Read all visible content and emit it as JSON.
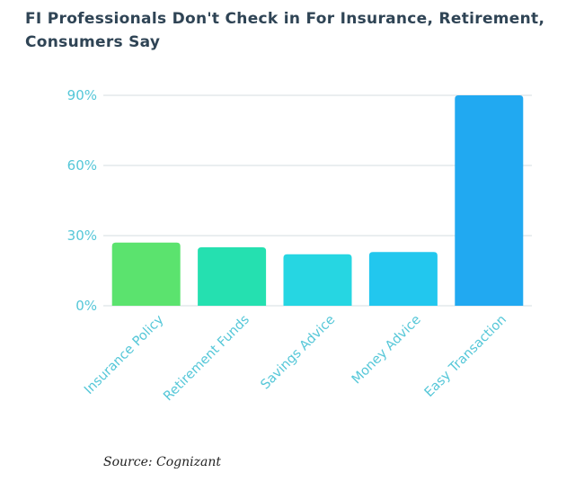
{
  "title": "FI Professionals Don't Check in For Insurance, Retirement, Consumers Say",
  "source": "Source: Cognizant",
  "chart_data": {
    "type": "bar",
    "title": "FI Professionals Don't Check in For Insurance, Retirement, Consumers Say",
    "categories": [
      "Insurance Policy",
      "Retirement Funds",
      "Savings Advice",
      "Money Advice",
      "Easy Transaction"
    ],
    "values": [
      27,
      25,
      22,
      23,
      90
    ],
    "unit": "%",
    "yticks": [
      0,
      30,
      60,
      90
    ],
    "ytick_labels": [
      "0%",
      "30%",
      "60%",
      "90%"
    ],
    "ylim": [
      0,
      90
    ],
    "xlabel": "",
    "ylabel": "",
    "grid": true,
    "colors": [
      "#5be36e",
      "#25e0b0",
      "#26d6e2",
      "#22c7ee",
      "#21a9f1"
    ],
    "grid_color": "#d6dde0",
    "tick_color": "#55c7d8"
  }
}
